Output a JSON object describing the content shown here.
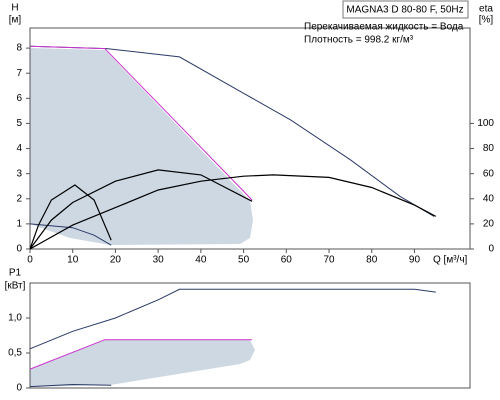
{
  "chart_data": [
    {
      "type": "line",
      "title": "MAGNA3 D 80-80 F, 50Hz",
      "annotations": [
        "Перекачиваемая жидкость = Вода",
        "Плотность = 998.2 кг/м³"
      ],
      "ylabel": "H",
      "yunit": "[м]",
      "y2label": "eta",
      "y2unit": "[%]",
      "xlabel": "Q [м³/ч]",
      "xlim": [
        0,
        103
      ],
      "xticks": [
        0,
        10,
        20,
        30,
        40,
        50,
        60,
        70,
        80,
        90
      ],
      "ylim": [
        0,
        8.8
      ],
      "yticks": [
        0,
        1,
        2,
        3,
        4,
        5,
        6,
        7,
        8
      ],
      "y2lim": [
        0,
        176
      ],
      "y2ticks": [
        0,
        20,
        40,
        60,
        80,
        100
      ],
      "grid": false,
      "series": [
        {
          "color": "#2b3a67",
          "x": [
            0,
            18,
            35,
            50,
            61,
            75,
            86.6,
            94.6
          ],
          "values": [
            8.07,
            7.98,
            7.65,
            6.2,
            5.14,
            3.55,
            2.1,
            1.3
          ]
        },
        {
          "color": "#cc33cc",
          "x": [
            0,
            17.5,
            52
          ],
          "values": [
            8.07,
            7.98,
            1.95
          ]
        },
        {
          "color": "#2b3a67",
          "x": [
            0,
            10,
            15,
            19
          ],
          "values": [
            1.0,
            0.85,
            0.55,
            0.15
          ]
        },
        {
          "color": "#000000",
          "axis": "y2",
          "x": [
            0,
            10,
            20,
            30,
            40,
            50,
            57,
            70,
            80,
            90,
            95
          ],
          "values": [
            0,
            19,
            33,
            47,
            54,
            58,
            59,
            57,
            49,
            35,
            26
          ]
        },
        {
          "color": "#000000",
          "axis": "y2",
          "x": [
            0,
            5,
            10,
            20,
            30,
            40,
            52
          ],
          "values": [
            0,
            23,
            37,
            54,
            63,
            59,
            38
          ]
        },
        {
          "color": "#000000",
          "axis": "y2",
          "x": [
            0,
            2,
            5,
            10.5,
            15,
            19
          ],
          "values": [
            0,
            19,
            39,
            51,
            39,
            7
          ]
        }
      ]
    },
    {
      "type": "line",
      "ylabel": "P1",
      "yunit": "[кВт]",
      "xlim": [
        0,
        103
      ],
      "ylim": [
        0,
        1.5
      ],
      "yticks": [
        0,
        {
          "value": 0.5,
          "label": "0,5"
        },
        {
          "value": 1,
          "label": "1,0"
        }
      ],
      "grid": false,
      "series": [
        {
          "color": "#2b3a67",
          "x": [
            0,
            10,
            20,
            30,
            35,
            90,
            95
          ],
          "values": [
            0.56,
            0.81,
            1.0,
            1.26,
            1.41,
            1.41,
            1.37
          ]
        },
        {
          "color": "#cc33cc",
          "x": [
            0,
            17.5,
            52
          ],
          "values": [
            0.27,
            0.69,
            0.69
          ]
        },
        {
          "color": "#2b3a67",
          "x": [
            0,
            10,
            19
          ],
          "values": [
            0.02,
            0.05,
            0.04
          ]
        }
      ]
    }
  ]
}
